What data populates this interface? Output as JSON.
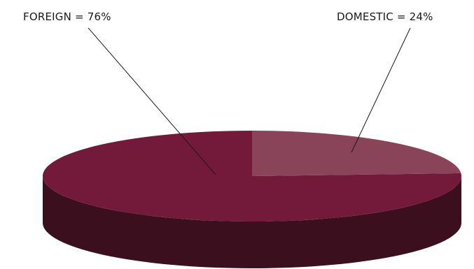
{
  "chart_data": {
    "type": "pie",
    "slices": [
      {
        "label": "FOREIGN = 76%",
        "name": "FOREIGN",
        "value": 76
      },
      {
        "label": "DOMESTIC = 24%",
        "name": "DOMESTIC",
        "value": 24
      }
    ],
    "colors": {
      "foreign_top": "#731a3a",
      "domestic_top": "#8a4459",
      "side": "#3b0f1e",
      "leader_line": "#1a1a1a"
    },
    "style": "3d"
  }
}
